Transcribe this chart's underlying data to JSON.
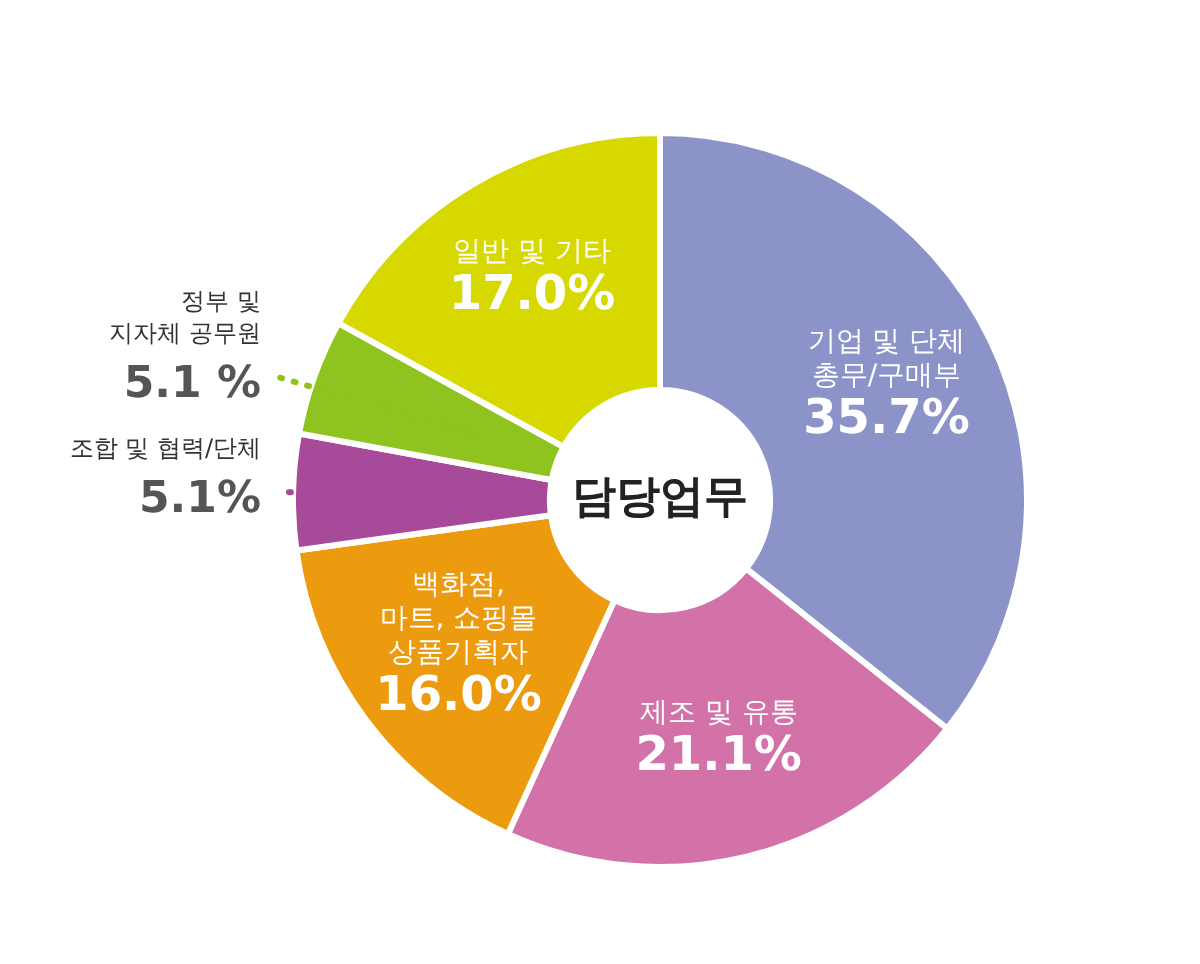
{
  "chart_data": {
    "type": "donut",
    "title": "담당업무",
    "categories": [
      "기업 및 단체\n총무/구매부",
      "제조 및 유통",
      "백화점,\n마트, 쇼핑몰\n상품기획자",
      "조합 및 협력/단체",
      "정부 및\n지자체 공무원",
      "일반 및 기타"
    ],
    "values": [
      35.7,
      21.1,
      16.0,
      5.1,
      5.1,
      17.0
    ],
    "colors": [
      "#8b93c9",
      "#d272a8",
      "#ec9a0e",
      "#a84a9a",
      "#8fc31f",
      "#d6d800"
    ],
    "value_labels": [
      "35.7%",
      "21.1%",
      "16.0%",
      "5.1%",
      "5.1 %",
      "17.0%"
    ]
  }
}
